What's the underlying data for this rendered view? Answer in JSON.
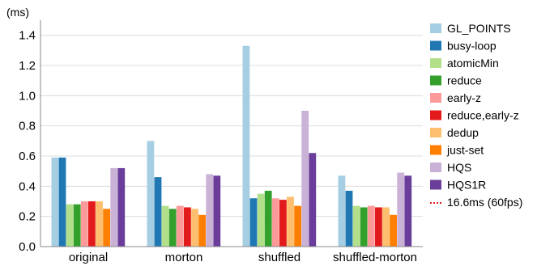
{
  "chart_data": {
    "type": "bar",
    "unit": "(ms)",
    "categories": [
      "original",
      "morton",
      "shuffled",
      "shuffled-morton"
    ],
    "ylim": [
      0,
      1.5
    ],
    "yticks": [
      "0.0",
      "0.2",
      "0.4",
      "0.6",
      "0.8",
      "1.0",
      "1.2",
      "1.4"
    ],
    "ytick_values": [
      0,
      0.2,
      0.4,
      0.6,
      0.8,
      1.0,
      1.2,
      1.4
    ],
    "grid": true,
    "legend_position": "right",
    "series": [
      {
        "name": "GL_POINTS",
        "color": "#a6cee3",
        "values": [
          0.59,
          0.7,
          1.33,
          0.47
        ]
      },
      {
        "name": "busy-loop",
        "color": "#1f78b4",
        "values": [
          0.59,
          0.46,
          0.32,
          0.37
        ]
      },
      {
        "name": "atomicMin",
        "color": "#b2df8a",
        "values": [
          0.28,
          0.27,
          0.35,
          0.27
        ]
      },
      {
        "name": "reduce",
        "color": "#33a02c",
        "values": [
          0.28,
          0.25,
          0.37,
          0.26
        ]
      },
      {
        "name": "early-z",
        "color": "#fb9a99",
        "values": [
          0.3,
          0.27,
          0.32,
          0.27
        ]
      },
      {
        "name": "reduce,early-z",
        "color": "#e31a1c",
        "values": [
          0.3,
          0.26,
          0.31,
          0.26
        ]
      },
      {
        "name": "dedup",
        "color": "#fdbf6f",
        "values": [
          0.3,
          0.25,
          0.33,
          0.26
        ]
      },
      {
        "name": "just-set",
        "color": "#ff7f00",
        "values": [
          0.25,
          0.21,
          0.27,
          0.21
        ]
      },
      {
        "name": "HQS",
        "color": "#cab2d6",
        "values": [
          0.52,
          0.48,
          0.9,
          0.49
        ]
      },
      {
        "name": "HQS1R",
        "color": "#6a3d9a",
        "values": [
          0.52,
          0.47,
          0.62,
          0.47
        ]
      }
    ],
    "reference_line": {
      "name": "16.6ms (60fps)",
      "color": "#e31a1c",
      "style": "dotted"
    }
  }
}
